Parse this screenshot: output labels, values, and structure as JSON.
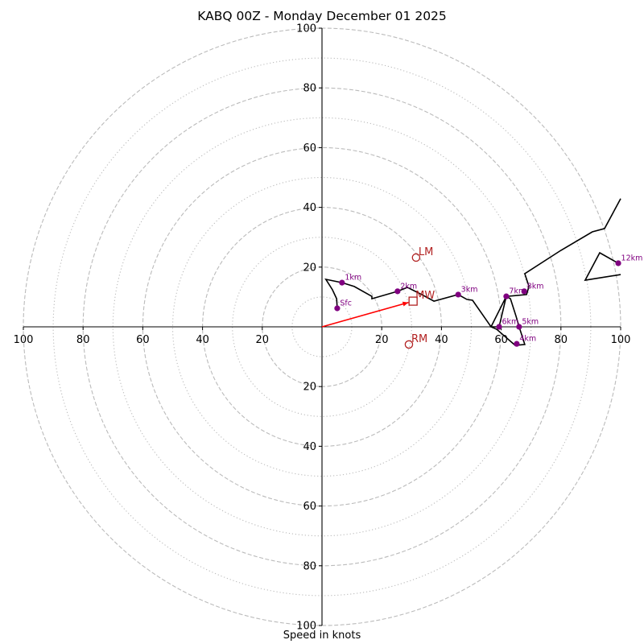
{
  "chart_data": {
    "type": "scatter",
    "subtype": "hodograph",
    "title": "KABQ 00Z - Monday December 01 2025",
    "xlabel": "Speed in knots",
    "ylabel": "",
    "xlim": [
      -100,
      100
    ],
    "ylim": [
      -100,
      100
    ],
    "units": "knots",
    "major_rings": [
      20,
      40,
      60,
      80,
      100
    ],
    "minor_rings": [
      10,
      30,
      50,
      70,
      90
    ],
    "x_tick_labels": [
      {
        "value": -100,
        "label": "100"
      },
      {
        "value": -80,
        "label": "80"
      },
      {
        "value": -60,
        "label": "60"
      },
      {
        "value": -40,
        "label": "40"
      },
      {
        "value": -20,
        "label": "20"
      },
      {
        "value": 20,
        "label": "20"
      },
      {
        "value": 40,
        "label": "40"
      },
      {
        "value": 60,
        "label": "60"
      },
      {
        "value": 80,
        "label": "80"
      },
      {
        "value": 100,
        "label": "100"
      }
    ],
    "y_tick_labels": [
      {
        "value": 100,
        "label": "100"
      },
      {
        "value": 80,
        "label": "80"
      },
      {
        "value": 60,
        "label": "60"
      },
      {
        "value": 40,
        "label": "40"
      },
      {
        "value": 20,
        "label": "20"
      },
      {
        "value": -20,
        "label": "20"
      },
      {
        "value": -40,
        "label": "40"
      },
      {
        "value": -60,
        "label": "60"
      },
      {
        "value": -80,
        "label": "80"
      },
      {
        "value": -100,
        "label": "100"
      }
    ],
    "hodograph_trace": {
      "color": "#000000",
      "points": [
        [
          5.1,
          6.2
        ],
        [
          4.9,
          9.4
        ],
        [
          3.5,
          12.4
        ],
        [
          1.3,
          15.9
        ],
        [
          6.7,
          14.8
        ],
        [
          10.8,
          13.5
        ],
        [
          16.7,
          10.2
        ],
        [
          16.7,
          9.4
        ],
        [
          25.3,
          11.9
        ],
        [
          28.6,
          13.2
        ],
        [
          33.4,
          10.8
        ],
        [
          37.5,
          8.6
        ],
        [
          45.6,
          10.8
        ],
        [
          48.5,
          9.2
        ],
        [
          50.4,
          8.9
        ],
        [
          55.5,
          1.6
        ],
        [
          56.6,
          0.0
        ],
        [
          58.5,
          -0.8
        ],
        [
          64.7,
          -6.2
        ],
        [
          67.9,
          -5.9
        ],
        [
          66.0,
          0.0
        ],
        [
          65.0,
          3.5
        ],
        [
          63.1,
          9.4
        ],
        [
          61.7,
          10.2
        ],
        [
          59.3,
          0.0
        ],
        [
          56.6,
          0.0
        ],
        [
          61.7,
          10.2
        ],
        [
          68.5,
          10.8
        ],
        [
          69.3,
          13.5
        ],
        [
          67.9,
          17.8
        ],
        [
          80.0,
          25.6
        ],
        [
          90.5,
          31.8
        ],
        [
          94.6,
          32.9
        ],
        [
          100.0,
          42.9
        ]
      ],
      "tail_points": [
        [
          100.0,
          17.5
        ],
        [
          88.1,
          15.6
        ],
        [
          93.0,
          24.8
        ],
        [
          99.2,
          21.3
        ]
      ]
    },
    "height_markers": [
      {
        "label": "Sfc",
        "u": 5.1,
        "v": 6.2
      },
      {
        "label": "1km",
        "u": 6.7,
        "v": 14.8
      },
      {
        "label": "2km",
        "u": 25.3,
        "v": 11.9
      },
      {
        "label": "3km",
        "u": 45.6,
        "v": 10.8
      },
      {
        "label": "4km",
        "u": 65.2,
        "v": -5.7
      },
      {
        "label": "5km",
        "u": 66.0,
        "v": 0.0
      },
      {
        "label": "6km",
        "u": 59.3,
        "v": 0.0
      },
      {
        "label": "7km",
        "u": 61.7,
        "v": 10.2
      },
      {
        "label": "8km",
        "u": 67.7,
        "v": 11.9
      },
      {
        "label": "12km",
        "u": 99.2,
        "v": 21.3
      }
    ],
    "storm_motion": [
      {
        "label": "LM",
        "u": 31.5,
        "v": 23.2,
        "marker": "circle"
      },
      {
        "label": "MW",
        "u": 30.5,
        "v": 8.6,
        "marker": "square"
      },
      {
        "label": "RM",
        "u": 29.1,
        "v": -5.9,
        "marker": "circle"
      }
    ],
    "mean_wind_vector": {
      "from": [
        0,
        0
      ],
      "to": [
        30.5,
        8.6
      ],
      "color": "#ff0000"
    },
    "colors": {
      "trace": "#000000",
      "height_markers": "#800080",
      "storm_motion": "#b22222",
      "mean_wind_arrow": "#ff0000",
      "rings": "#bbbbbb"
    },
    "grid": true,
    "legend": "none"
  }
}
